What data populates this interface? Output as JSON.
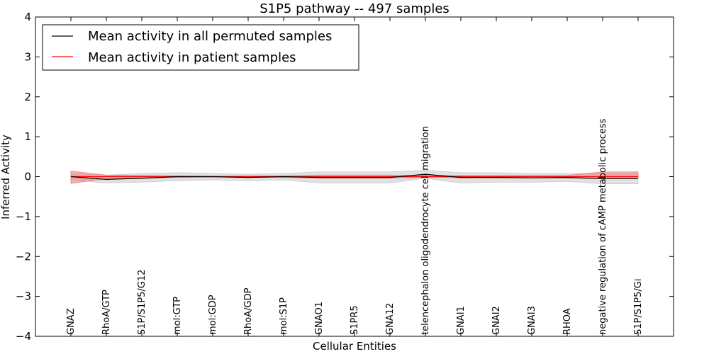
{
  "chart_data": {
    "type": "line",
    "title": "S1P5 pathway -- 497 samples",
    "xlabel": "Cellular Entities",
    "ylabel": "Inferred Activity",
    "ylim": [
      -4,
      4
    ],
    "yticks": [
      "4",
      "3",
      "2",
      "1",
      "0",
      "−1",
      "−2",
      "−3",
      "−4"
    ],
    "ytick_values": [
      4,
      3,
      2,
      1,
      0,
      -1,
      -2,
      -3,
      -4
    ],
    "categories": [
      "GNAZ",
      "RhoA/GTP",
      "S1P/S1P5/G12",
      "mol:GTP",
      "mol:GDP",
      "RhoA/GDP",
      "mol:S1P",
      "GNAO1",
      "S1PR5",
      "GNA12",
      "telencephalon oligodendrocyte cell migration",
      "GNAI1",
      "GNAI2",
      "GNAI3",
      "RHOA",
      "negative regulation of cAMP metabolic process",
      "S1P/S1P5/Gi"
    ],
    "series": [
      {
        "name": "Mean activity in all permuted samples",
        "color": "#000000",
        "band_color": "#c8c8c8",
        "values": [
          0.0,
          -0.07,
          -0.04,
          0.0,
          0.0,
          -0.02,
          0.0,
          -0.02,
          -0.02,
          -0.02,
          0.06,
          -0.02,
          -0.02,
          -0.03,
          -0.02,
          -0.05,
          -0.05
        ],
        "lower": [
          -0.08,
          -0.16,
          -0.14,
          -0.1,
          -0.08,
          -0.1,
          -0.08,
          -0.16,
          -0.16,
          -0.16,
          -0.04,
          -0.16,
          -0.14,
          -0.14,
          -0.12,
          -0.18,
          -0.18
        ],
        "upper": [
          0.08,
          0.04,
          0.08,
          0.1,
          0.08,
          0.06,
          0.08,
          0.12,
          0.12,
          0.12,
          0.16,
          0.1,
          0.1,
          0.08,
          0.08,
          0.08,
          0.08
        ]
      },
      {
        "name": "Mean activity in patient samples",
        "color": "#ff0000",
        "band_color": "#f08080",
        "values": [
          0.0,
          0.0,
          0.0,
          0.0,
          0.0,
          0.0,
          0.0,
          0.0,
          0.0,
          0.0,
          0.0,
          0.0,
          0.0,
          0.0,
          0.0,
          0.0,
          0.0
        ],
        "lower": [
          -0.17,
          -0.05,
          -0.03,
          -0.02,
          -0.01,
          -0.02,
          -0.02,
          -0.04,
          -0.04,
          -0.04,
          -0.02,
          -0.03,
          -0.03,
          -0.03,
          -0.03,
          -0.05,
          -0.05
        ],
        "upper": [
          0.14,
          0.04,
          0.03,
          0.02,
          0.01,
          0.02,
          0.02,
          0.04,
          0.04,
          0.04,
          0.02,
          0.03,
          0.03,
          0.03,
          0.03,
          0.12,
          0.12
        ]
      }
    ],
    "legend_position": "top-left"
  }
}
